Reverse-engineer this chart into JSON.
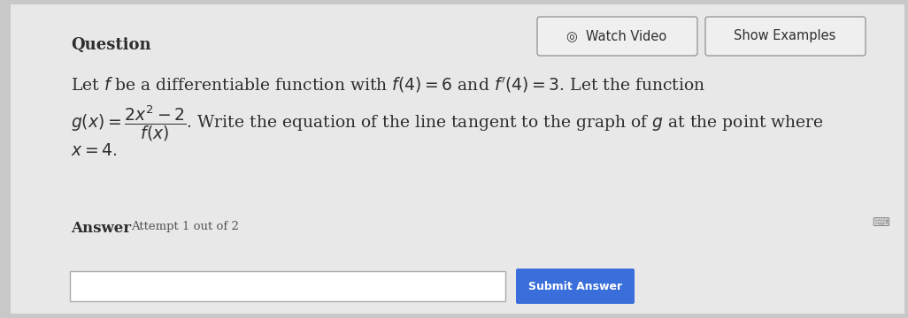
{
  "bg_outer": "#c8c8c8",
  "bg_panel": "#e8e8e8",
  "question_label": "Question",
  "question_fontsize": 13,
  "button1_text": "◎  Watch Video",
  "button2_text": "Show Examples",
  "button_fontsize": 10.5,
  "button_bg": "#efefef",
  "button_border": "#999999",
  "line1": "Let $f$ be a differentiable function with $f(4) = 6$ and $f'(4) = 3$. Let the function",
  "line2": "$g(x) = \\dfrac{2x^2-2}{f(x)}$. Write the equation of the line tangent to the graph of $g$ at the point where",
  "line3": "$x = 4.$",
  "body_fontsize": 13.5,
  "text_color": "#2e2e2e",
  "answer_label": "Answer",
  "answer_sub": "Attempt 1 out of 2",
  "answer_fontsize": 12,
  "answer_sub_fontsize": 9.5,
  "input_box_color": "#ffffff",
  "submit_btn_color": "#3a6fdb",
  "submit_btn_text": "Submit Answer"
}
